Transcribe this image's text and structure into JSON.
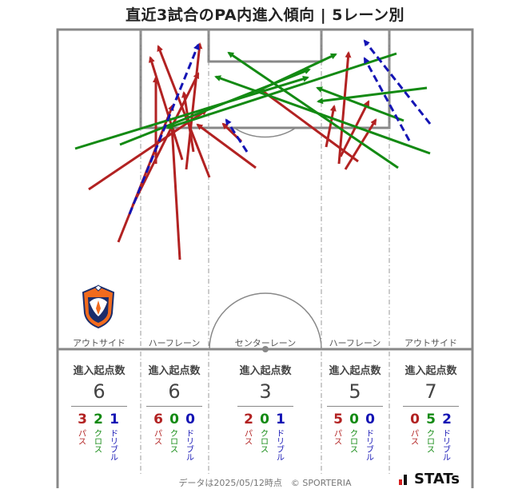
{
  "title": "直近3試合のPA内進入傾向 | 5レーン別",
  "colors": {
    "pass": "#b22222",
    "cross": "#138a13",
    "dribble": "#1414b4"
  },
  "lanes": [
    {
      "label": "アウトサイド",
      "stat_head": "進入起点数",
      "total": "6",
      "counts": {
        "pass": "3",
        "cross": "2",
        "dribble": "1"
      }
    },
    {
      "label": "ハーフレーン",
      "stat_head": "進入起点数",
      "total": "6",
      "counts": {
        "pass": "6",
        "cross": "0",
        "dribble": "0"
      }
    },
    {
      "label": "センターレーン",
      "stat_head": "進入起点数",
      "total": "3",
      "counts": {
        "pass": "2",
        "cross": "0",
        "dribble": "1"
      }
    },
    {
      "label": "ハーフレーン",
      "stat_head": "進入起点数",
      "total": "5",
      "counts": {
        "pass": "5",
        "cross": "0",
        "dribble": "0"
      }
    },
    {
      "label": "アウトサイド",
      "stat_head": "進入起点数",
      "total": "7",
      "counts": {
        "pass": "0",
        "cross": "5",
        "dribble": "2"
      }
    }
  ],
  "kind_labels": {
    "pass": "パス",
    "cross": "クロス",
    "dribble": "ドリブル"
  },
  "footer": "データは2025/05/12時点　© SPORTERIA",
  "brand": "STATs",
  "team_logo": "albirex-niigata-crest-icon"
}
